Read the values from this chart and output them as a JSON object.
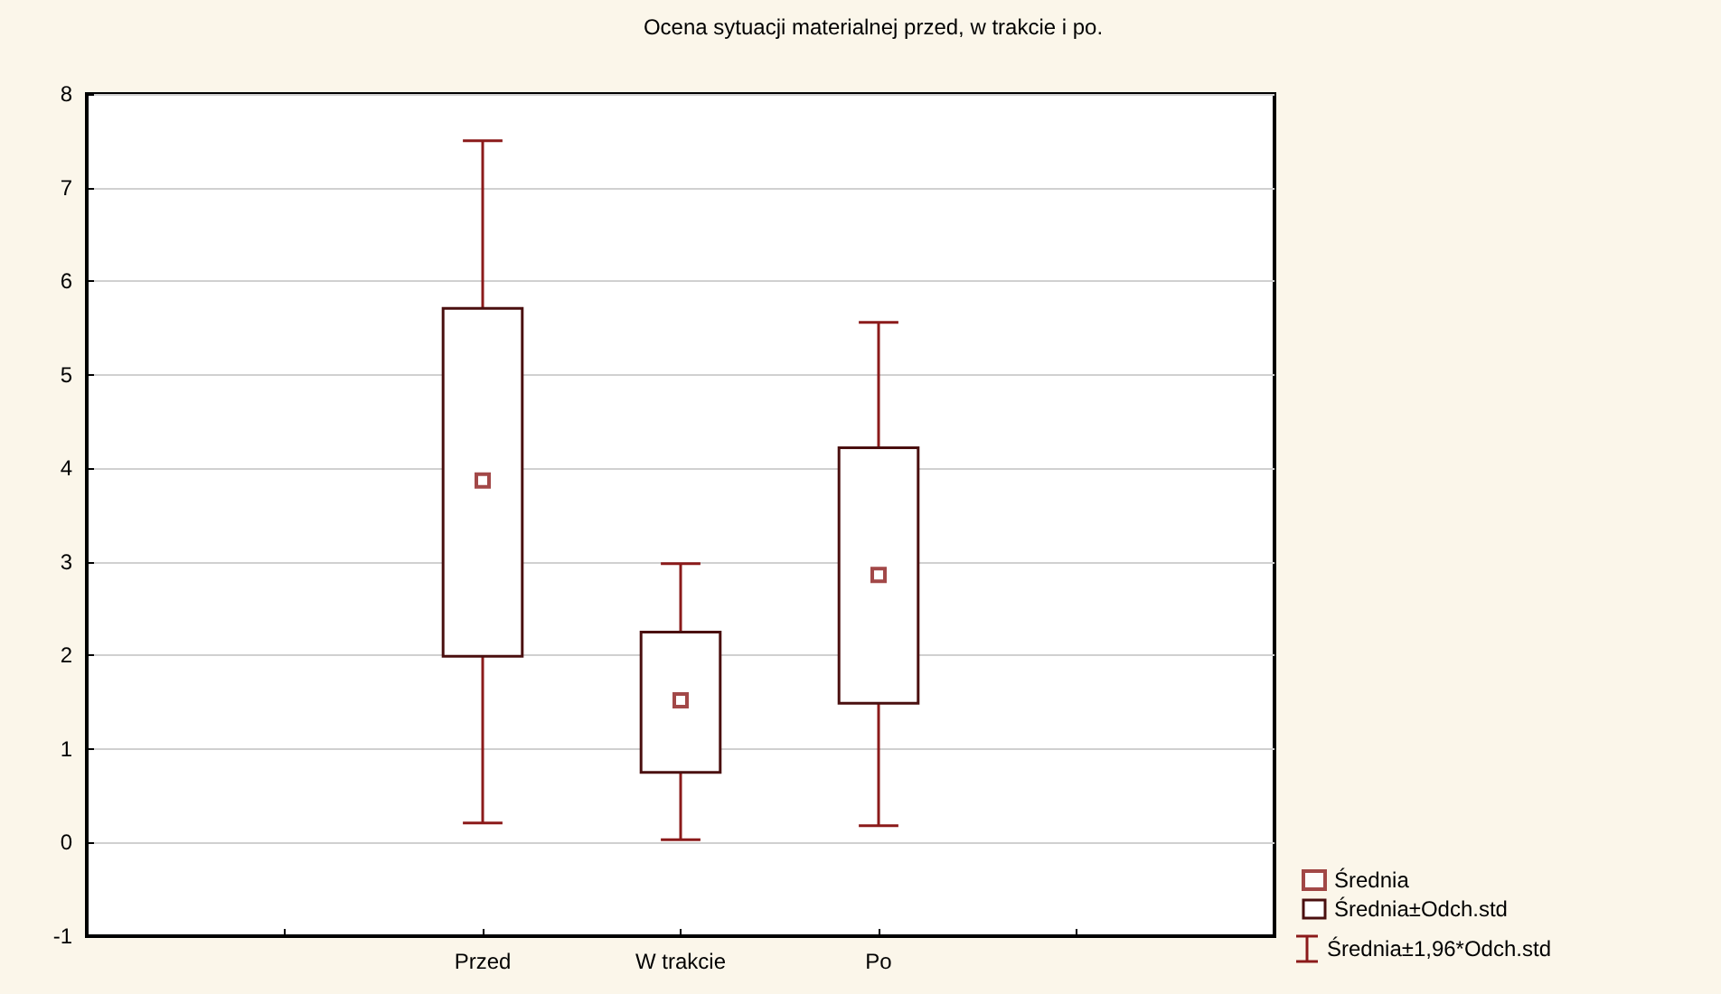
{
  "chart_data": {
    "type": "box",
    "title": "Ocena sytuacji materialnej przed, w trakcie i po.",
    "categories": [
      null,
      "Przed",
      "W trakcie",
      "Po",
      null
    ],
    "series": [
      {
        "type": "scatter",
        "name": "Średnia",
        "color": "#8b1a1a",
        "marker": "square",
        "values": [
          null,
          3.87,
          1.52,
          2.86,
          null
        ]
      },
      {
        "type": "box",
        "name": "Średnia±Odch.std",
        "color": "#4a0f0f",
        "boxes": [
          null,
          {
            "low": 0.21,
            "q1": 1.99,
            "q3": 5.71,
            "high": 7.5
          },
          {
            "low": 0.03,
            "q1": 0.75,
            "q3": 2.25,
            "high": 2.98
          },
          {
            "low": 0.18,
            "q1": 1.49,
            "q3": 4.22,
            "high": 5.56
          },
          null
        ]
      }
    ],
    "annotations": [
      "Średnia±1,96*Odch.std"
    ],
    "ylim": [
      -1,
      8
    ],
    "yticks": [
      -1,
      0,
      1,
      2,
      3,
      4,
      5,
      6,
      7,
      8
    ],
    "grid": "y",
    "legend": "bottom right"
  }
}
